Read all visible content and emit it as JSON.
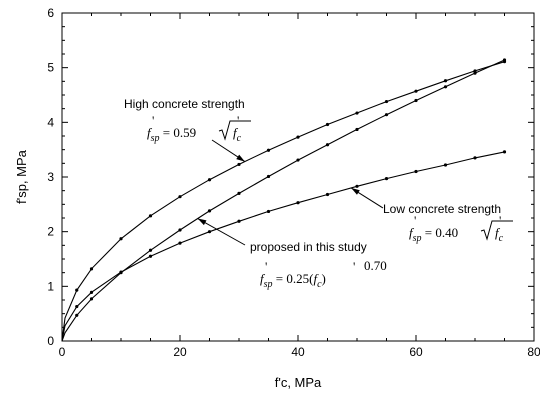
{
  "chart_data": {
    "type": "line",
    "xlabel": "f'c, MPa",
    "ylabel": "f'sp, MPa",
    "xlim": [
      0,
      80
    ],
    "ylim": [
      0,
      6
    ],
    "xticks": [
      "0",
      "20",
      "40",
      "60",
      "80"
    ],
    "yticks": [
      "0",
      "1",
      "2",
      "3",
      "4",
      "5",
      "6"
    ],
    "grid": false,
    "series": [
      {
        "name": "High concrete strength",
        "formula": "f'sp = 0.59√f'c",
        "x": [
          0,
          0.5,
          2.5,
          5,
          10,
          15,
          20,
          25,
          30,
          35,
          40,
          45,
          50,
          55,
          60,
          65,
          70,
          75
        ],
        "y": [
          0,
          0.42,
          0.93,
          1.32,
          1.87,
          2.29,
          2.64,
          2.95,
          3.23,
          3.49,
          3.73,
          3.96,
          4.17,
          4.38,
          4.57,
          4.76,
          4.94,
          5.11
        ]
      },
      {
        "name": "proposed in this study",
        "formula": "f'sp = 0.25(f'c)^0.70",
        "x": [
          0,
          0.5,
          2.5,
          5,
          10,
          15,
          20,
          25,
          30,
          35,
          40,
          45,
          50,
          55,
          60,
          65,
          70,
          75
        ],
        "y": [
          0,
          0.15,
          0.47,
          0.77,
          1.25,
          1.66,
          2.03,
          2.38,
          2.7,
          3.01,
          3.31,
          3.59,
          3.87,
          4.14,
          4.4,
          4.65,
          4.9,
          5.14
        ]
      },
      {
        "name": "Low concrete strength",
        "formula": "f'sp = 0.40√f'c",
        "x": [
          0,
          0.5,
          2.5,
          5,
          10,
          15,
          20,
          25,
          30,
          35,
          40,
          45,
          50,
          55,
          60,
          65,
          70,
          75
        ],
        "y": [
          0,
          0.28,
          0.63,
          0.89,
          1.26,
          1.55,
          1.79,
          2.0,
          2.19,
          2.37,
          2.53,
          2.68,
          2.83,
          2.97,
          3.1,
          3.22,
          3.35,
          3.46
        ]
      }
    ],
    "annotations": [
      {
        "label": "High concrete strength",
        "formula": "0.59",
        "points_to_x": 31
      },
      {
        "label": "proposed in this study",
        "formula": "0.25",
        "exponent": "0.70",
        "points_to_x": 23
      },
      {
        "label": "Low concrete strength",
        "formula": "0.40",
        "points_to_x": 49
      }
    ]
  }
}
